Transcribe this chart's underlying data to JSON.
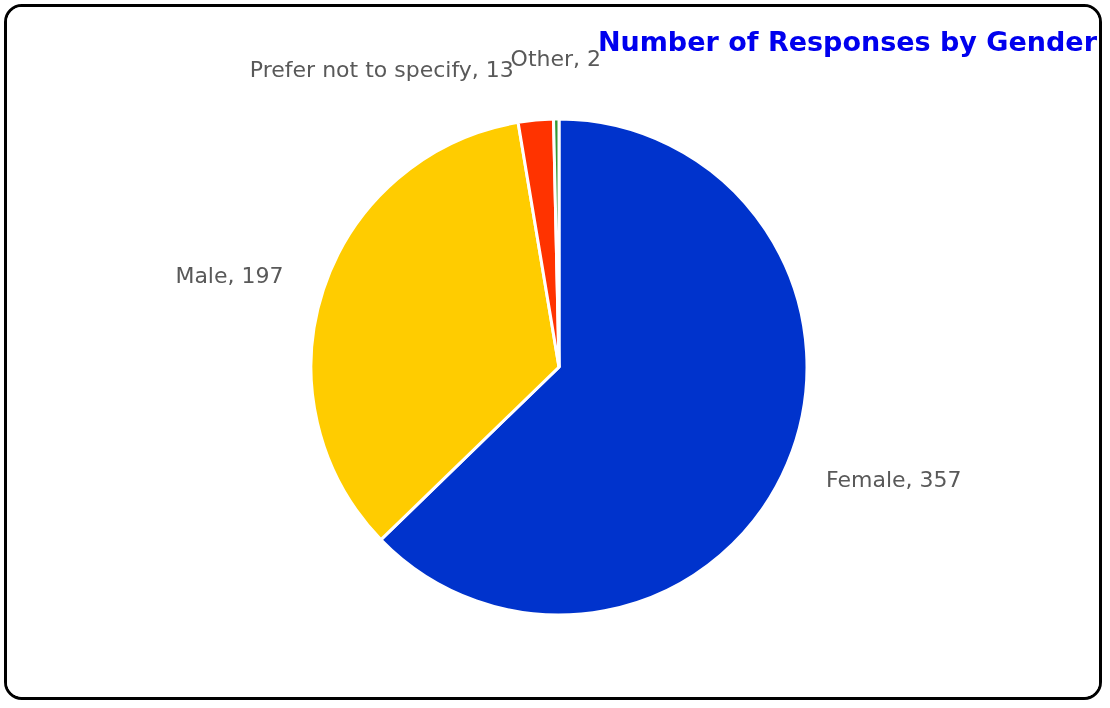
{
  "chart_data": {
    "type": "pie",
    "title": "Number of Responses by Gender",
    "categories": [
      "Female",
      "Male",
      "Prefer not to specify",
      "Other"
    ],
    "values": [
      357,
      197,
      13,
      2
    ],
    "colors": [
      "#0033cc",
      "#ffcc00",
      "#ff3300",
      "#339933"
    ],
    "value_labels": [
      ", 357",
      ", 197",
      ", 13",
      ", 2"
    ],
    "legend": false
  }
}
